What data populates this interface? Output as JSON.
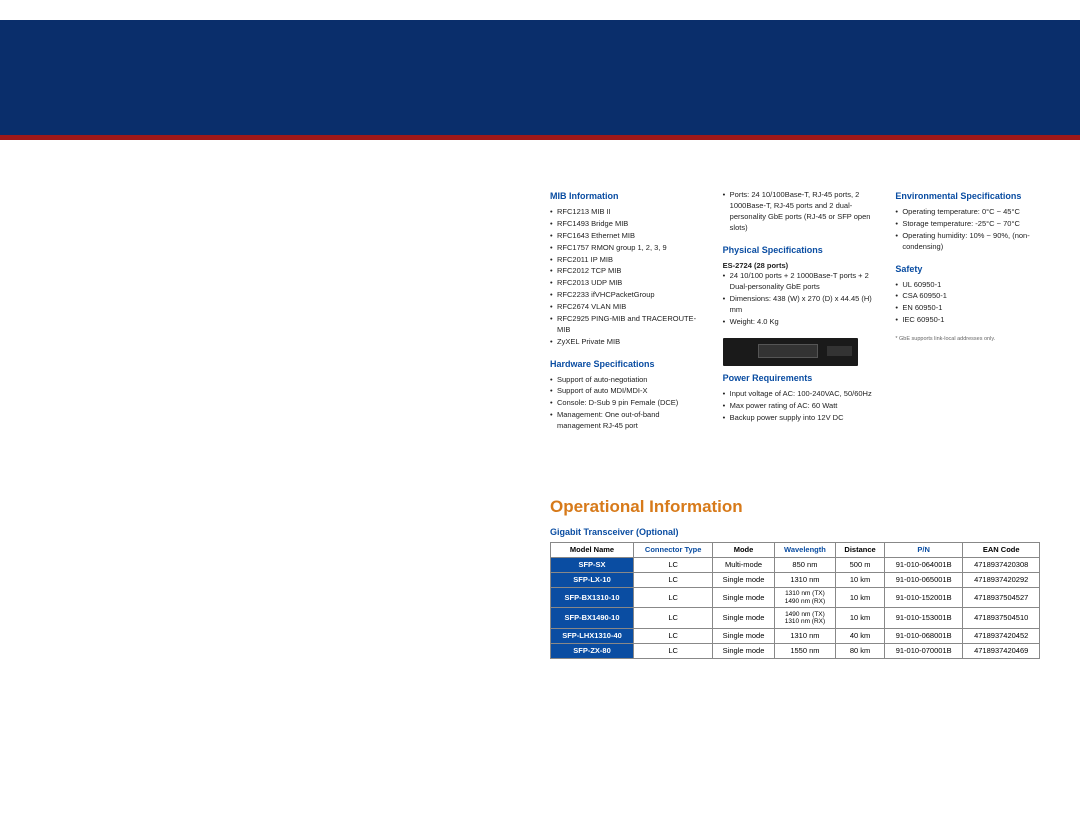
{
  "colors": {
    "header_bg": "#0a2e6b",
    "stripe": "#a01818",
    "section_blue": "#0a4da2",
    "op_orange": "#d77a1a",
    "model_bg": "#0a4da2",
    "border": "#888888",
    "text": "#222222"
  },
  "col1": {
    "title1": "MIB Information",
    "items1": [
      "RFC1213 MIB II",
      "RFC1493 Bridge MIB",
      "RFC1643 Ethernet MIB",
      "RFC1757 RMON group 1, 2, 3, 9",
      "RFC2011 IP MIB",
      "RFC2012 TCP MIB",
      "RFC2013 UDP MIB",
      "RFC2233 ifVHCPacketGroup",
      "RFC2674 VLAN MIB",
      "RFC2925 PING-MIB and TRACEROUTE-MIB",
      "ZyXEL Private MIB"
    ],
    "title2": "Hardware Specifications",
    "items2": [
      "Support of auto-negotiation",
      "Support of auto MDI/MDI-X",
      "Console: D-Sub 9 pin Female (DCE)",
      "Management: One out-of-band management RJ-45 port"
    ]
  },
  "col2": {
    "lead_items": [
      "Ports: 24 10/100Base-T, RJ-45 ports, 2 1000Base-T, RJ-45 ports and 2 dual-personality GbE ports (RJ-45 or SFP open slots)"
    ],
    "title1": "Physical Specifications",
    "bold_sub": "ES-2724 (28 ports)",
    "items1": [
      "24 10/100 ports + 2 1000Base-T ports + 2  Dual-personality GbE ports",
      "Dimensions: 438 (W) x 270 (D) x 44.45 (H) mm",
      "Weight: 4.0 Kg"
    ],
    "title2": "Power Requirements",
    "items2": [
      "Input voltage of AC: 100-240VAC, 50/60Hz",
      "Max power rating of AC: 60 Watt",
      "Backup power supply into 12V DC"
    ]
  },
  "col3": {
    "title1": "Environmental Specifications",
    "items1": [
      "Operating temperature: 0°C ~ 45°C",
      "Storage temperature: -25°C ~ 70°C",
      "Operating humidity: 10% ~ 90%, (non-condensing)"
    ],
    "title2": "Safety",
    "items2": [
      "UL 60950-1",
      "CSA 60950-1",
      "EN 60950-1",
      "IEC 60950-1"
    ],
    "footnote": "* GbE supports link-local addresses only."
  },
  "operational": {
    "title": "Operational Information",
    "subtitle": "Gigabit Transceiver (Optional)",
    "headers": [
      "Model Name",
      "Connector Type",
      "Mode",
      "Wavelength",
      "Distance",
      "P/N",
      "EAN Code"
    ],
    "blue_headers": [
      false,
      true,
      false,
      true,
      false,
      true,
      false
    ],
    "rows": [
      [
        "SFP-SX",
        "LC",
        "Multi-mode",
        "850 nm",
        "500 m",
        "91-010-064001B",
        "4718937420308"
      ],
      [
        "SFP-LX-10",
        "LC",
        "Single mode",
        "1310 nm",
        "10 km",
        "91-010-065001B",
        "4718937420292"
      ],
      [
        "SFP-BX1310-10",
        "LC",
        "Single mode",
        "1310 nm (TX)\n1490 nm (RX)",
        "10 km",
        "91-010-152001B",
        "4718937504527"
      ],
      [
        "SFP-BX1490-10",
        "LC",
        "Single mode",
        "1490 nm (TX)\n1310 nm (RX)",
        "10 km",
        "91-010-153001B",
        "4718937504510"
      ],
      [
        "SFP-LHX1310-40",
        "LC",
        "Single mode",
        "1310 nm",
        "40 km",
        "91-010-068001B",
        "4718937420452"
      ],
      [
        "SFP-ZX-80",
        "LC",
        "Single mode",
        "1550 nm",
        "80 km",
        "91-010-070001B",
        "4718937420469"
      ]
    ]
  }
}
